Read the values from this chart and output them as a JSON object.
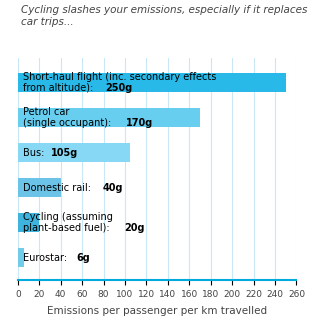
{
  "title": "Cycling slashes your emissions, especially if it replaces car trips...",
  "labels_normal": [
    "Short-haul flight (inc. secondary effects\nfrom altitude): ",
    "Petrol car\n(single occupant): ",
    "Bus: ",
    "Domestic rail: ",
    "Cycling (assuming\nplant-based fuel): ",
    "Eurostar: "
  ],
  "labels_bold": [
    "250g",
    "170g",
    "105g",
    "40g",
    "20g",
    "6g"
  ],
  "values": [
    250,
    170,
    105,
    40,
    20,
    6
  ],
  "bar_colors": [
    "#29B9E8",
    "#67CEF0",
    "#86D8F5",
    "#6BC4E8",
    "#3EB3DD",
    "#71CCEA"
  ],
  "xlabel": "Emissions per passenger per km travelled",
  "xlim": [
    0,
    260
  ],
  "xticks": [
    0,
    20,
    40,
    60,
    80,
    100,
    120,
    140,
    160,
    180,
    200,
    220,
    240,
    260
  ],
  "background_color": "#FFFFFF",
  "grid_color": "#C8E8F5",
  "title_color": "#444444",
  "text_color": "#000000",
  "axis_color": "#00AADD",
  "title_fontsize": 7.5,
  "tick_fontsize": 6.5,
  "label_fontsize": 7.0,
  "xlabel_fontsize": 7.5
}
